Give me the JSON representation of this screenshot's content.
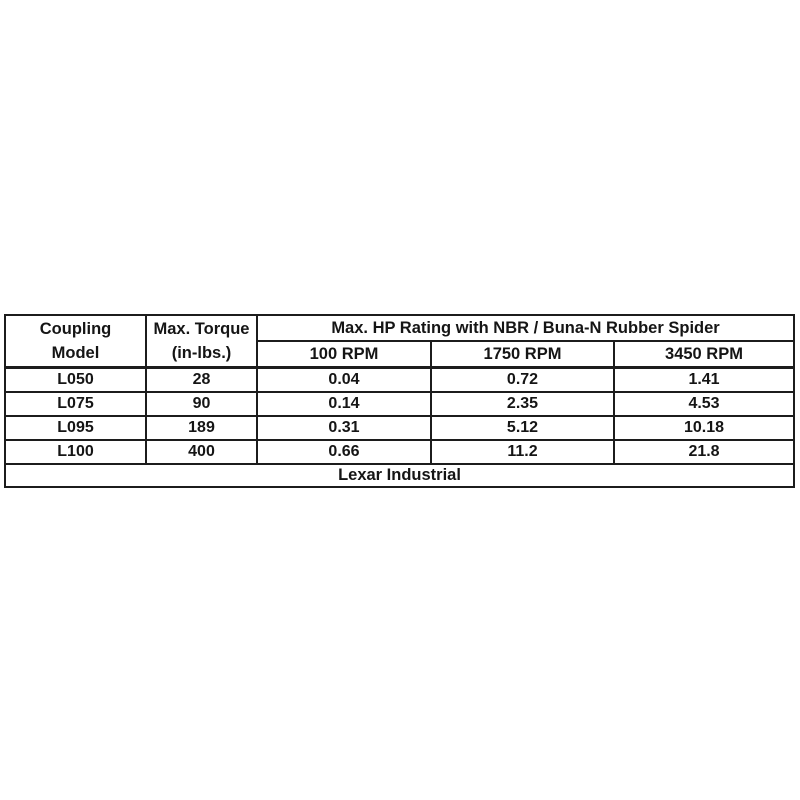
{
  "page": {
    "background": "#ffffff",
    "border_color": "#1c1c1c",
    "text_color": "#151515"
  },
  "table": {
    "columns": {
      "coupling_model": "Coupling\nModel",
      "max_torque": "Max. Torque\n(in-lbs.)",
      "hp_rating_group": "Max. HP Rating with NBR / Buna-N Rubber Spider",
      "rpm_100": "100 RPM",
      "rpm_1750": "1750 RPM",
      "rpm_3450": "3450 RPM"
    },
    "rows": [
      {
        "model": "L050",
        "torque": "28",
        "hp100": "0.04",
        "hp1750": "0.72",
        "hp3450": "1.41"
      },
      {
        "model": "L075",
        "torque": "90",
        "hp100": "0.14",
        "hp1750": "2.35",
        "hp3450": "4.53"
      },
      {
        "model": "L095",
        "torque": "189",
        "hp100": "0.31",
        "hp1750": "5.12",
        "hp3450": "10.18"
      },
      {
        "model": "L100",
        "torque": "400",
        "hp100": "0.66",
        "hp1750": "11.2",
        "hp3450": "21.8"
      }
    ],
    "footer": "Lexar Industrial"
  }
}
